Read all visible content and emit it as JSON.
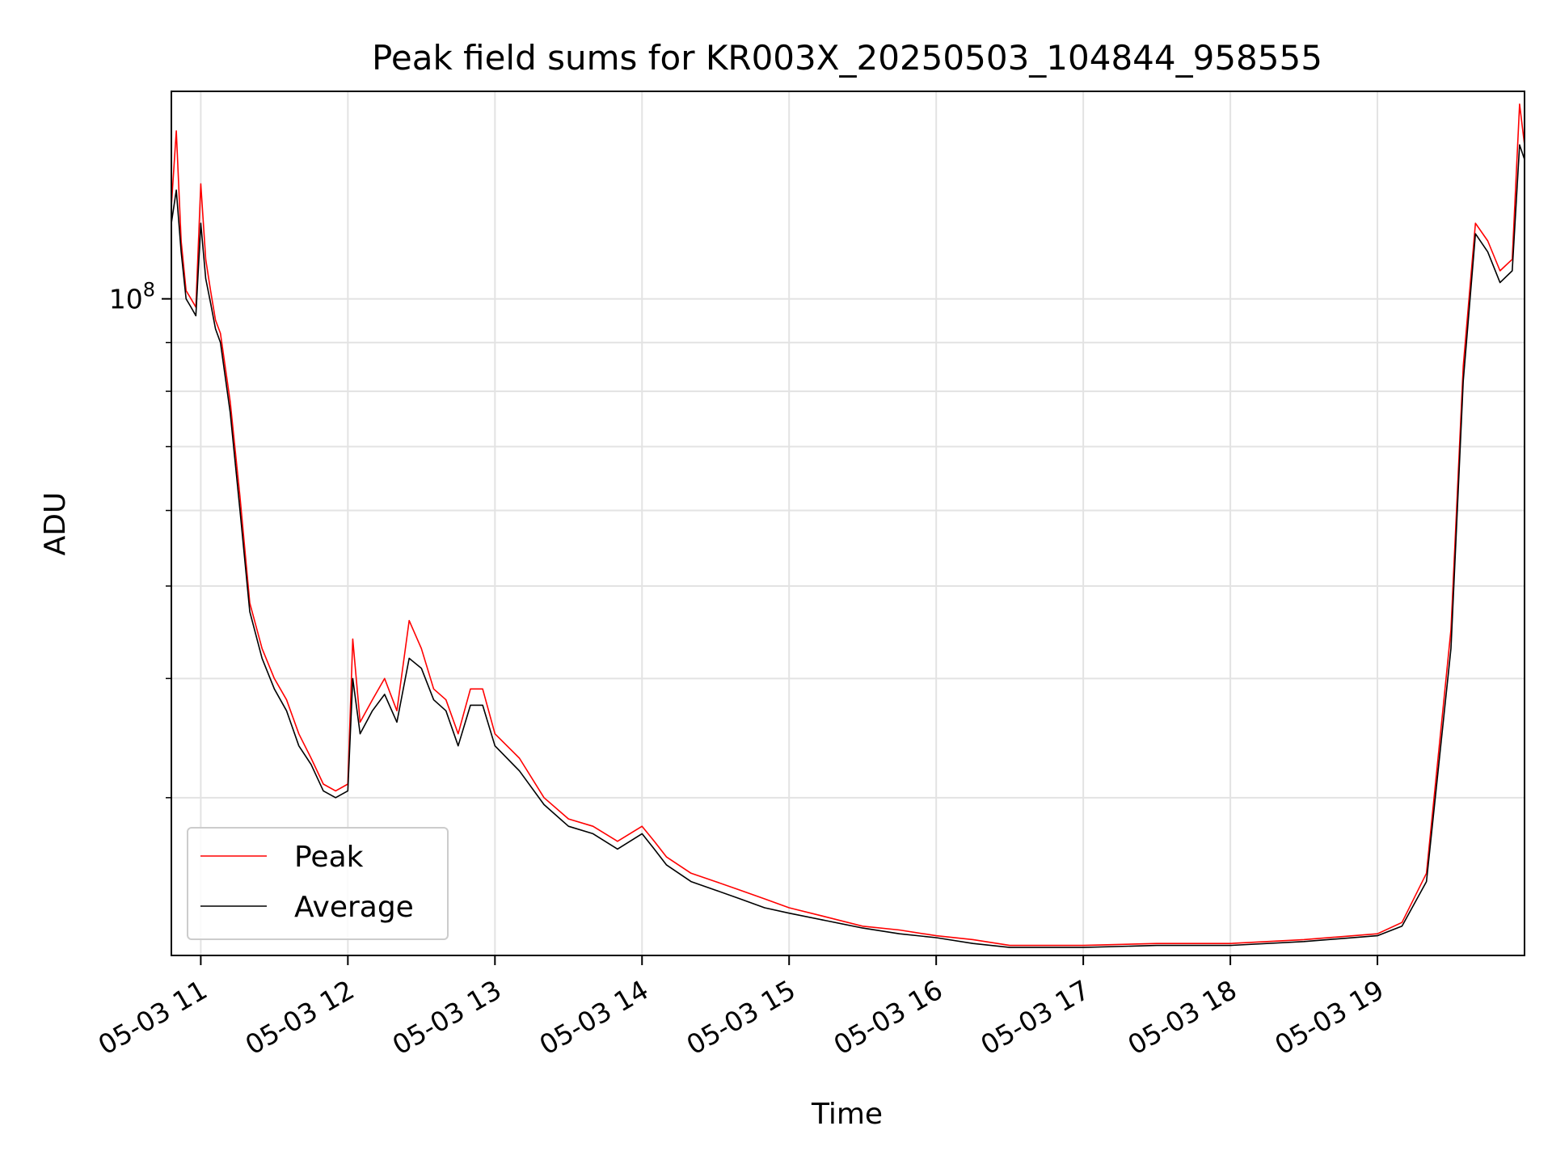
{
  "chart_data": {
    "type": "line",
    "title": "Peak field sums for KR003X_20250503_104844_958555",
    "xlabel": "Time",
    "ylabel": "ADU",
    "y_scale": "log",
    "ylim": [
      20500000.0,
      165000000.0
    ],
    "xlim": [
      "2025-05-03 10:48",
      "2025-05-03 20:00"
    ],
    "grid": true,
    "legend_position": "lower-left",
    "x_tick_labels": [
      "05-03 11",
      "05-03 12",
      "05-03 13",
      "05-03 14",
      "05-03 15",
      "05-03 16",
      "05-03 17",
      "05-03 18",
      "05-03 19"
    ],
    "x_ticks": [
      "2025-05-03 11:00",
      "2025-05-03 12:00",
      "2025-05-03 13:00",
      "2025-05-03 14:00",
      "2025-05-03 15:00",
      "2025-05-03 16:00",
      "2025-05-03 17:00",
      "2025-05-03 18:00",
      "2025-05-03 19:00"
    ],
    "y_major_tick_label": "10^8",
    "y_major_tick_value": 100000000,
    "y_minor_ticks": [
      30000000,
      40000000,
      50000000,
      60000000,
      70000000,
      80000000,
      90000000
    ],
    "series": [
      {
        "name": "Peak",
        "color": "#ff0000",
        "x": [
          "2025-05-03 10:48",
          "2025-05-03 10:50",
          "2025-05-03 10:52",
          "2025-05-03 10:54",
          "2025-05-03 10:56",
          "2025-05-03 10:58",
          "2025-05-03 11:00",
          "2025-05-03 11:02",
          "2025-05-03 11:04",
          "2025-05-03 11:06",
          "2025-05-03 11:08",
          "2025-05-03 11:12",
          "2025-05-03 11:16",
          "2025-05-03 11:20",
          "2025-05-03 11:25",
          "2025-05-03 11:30",
          "2025-05-03 11:35",
          "2025-05-03 11:40",
          "2025-05-03 11:45",
          "2025-05-03 11:50",
          "2025-05-03 11:55",
          "2025-05-03 12:00",
          "2025-05-03 12:02",
          "2025-05-03 12:05",
          "2025-05-03 12:10",
          "2025-05-03 12:15",
          "2025-05-03 12:20",
          "2025-05-03 12:25",
          "2025-05-03 12:30",
          "2025-05-03 12:35",
          "2025-05-03 12:40",
          "2025-05-03 12:45",
          "2025-05-03 12:50",
          "2025-05-03 12:55",
          "2025-05-03 13:00",
          "2025-05-03 13:10",
          "2025-05-03 13:20",
          "2025-05-03 13:30",
          "2025-05-03 13:40",
          "2025-05-03 13:50",
          "2025-05-03 14:00",
          "2025-05-03 14:05",
          "2025-05-03 14:10",
          "2025-05-03 14:20",
          "2025-05-03 14:30",
          "2025-05-03 14:40",
          "2025-05-03 14:50",
          "2025-05-03 15:00",
          "2025-05-03 15:15",
          "2025-05-03 15:30",
          "2025-05-03 15:45",
          "2025-05-03 16:00",
          "2025-05-03 16:15",
          "2025-05-03 16:30",
          "2025-05-03 16:45",
          "2025-05-03 17:00",
          "2025-05-03 17:30",
          "2025-05-03 18:00",
          "2025-05-03 18:30",
          "2025-05-03 19:00",
          "2025-05-03 19:10",
          "2025-05-03 19:20",
          "2025-05-03 19:30",
          "2025-05-03 19:35",
          "2025-05-03 19:40",
          "2025-05-03 19:45",
          "2025-05-03 19:50",
          "2025-05-03 19:55",
          "2025-05-03 19:58",
          "2025-05-03 20:00"
        ],
        "values": [
          125000000,
          150000000,
          115000000,
          102000000,
          100000000,
          98000000,
          132000000,
          110000000,
          102000000,
          95000000,
          92000000,
          78000000,
          62000000,
          48000000,
          43000000,
          40000000,
          38000000,
          35000000,
          33000000,
          31000000,
          30500000,
          31000000,
          44000000,
          36000000,
          38000000,
          40000000,
          37000000,
          46000000,
          43000000,
          39000000,
          38000000,
          35000000,
          39000000,
          39000000,
          35000000,
          33000000,
          30000000,
          28500000,
          28000000,
          27000000,
          28000000,
          27000000,
          26000000,
          25000000,
          24500000,
          24000000,
          23500000,
          23000000,
          22500000,
          22000000,
          21800000,
          21500000,
          21300000,
          21000000,
          21000000,
          21000000,
          21100000,
          21100000,
          21300000,
          21600000,
          22200000,
          25000000,
          45000000,
          85000000,
          120000000,
          115000000,
          107000000,
          110000000,
          160000000,
          145000000
        ]
      },
      {
        "name": "Average",
        "color": "#000000",
        "x": [
          "2025-05-03 10:48",
          "2025-05-03 10:50",
          "2025-05-03 10:52",
          "2025-05-03 10:54",
          "2025-05-03 10:56",
          "2025-05-03 10:58",
          "2025-05-03 11:00",
          "2025-05-03 11:02",
          "2025-05-03 11:04",
          "2025-05-03 11:06",
          "2025-05-03 11:08",
          "2025-05-03 11:12",
          "2025-05-03 11:16",
          "2025-05-03 11:20",
          "2025-05-03 11:25",
          "2025-05-03 11:30",
          "2025-05-03 11:35",
          "2025-05-03 11:40",
          "2025-05-03 11:45",
          "2025-05-03 11:50",
          "2025-05-03 11:55",
          "2025-05-03 12:00",
          "2025-05-03 12:02",
          "2025-05-03 12:05",
          "2025-05-03 12:10",
          "2025-05-03 12:15",
          "2025-05-03 12:20",
          "2025-05-03 12:25",
          "2025-05-03 12:30",
          "2025-05-03 12:35",
          "2025-05-03 12:40",
          "2025-05-03 12:45",
          "2025-05-03 12:50",
          "2025-05-03 12:55",
          "2025-05-03 13:00",
          "2025-05-03 13:10",
          "2025-05-03 13:20",
          "2025-05-03 13:30",
          "2025-05-03 13:40",
          "2025-05-03 13:50",
          "2025-05-03 14:00",
          "2025-05-03 14:05",
          "2025-05-03 14:10",
          "2025-05-03 14:20",
          "2025-05-03 14:30",
          "2025-05-03 14:40",
          "2025-05-03 14:50",
          "2025-05-03 15:00",
          "2025-05-03 15:15",
          "2025-05-03 15:30",
          "2025-05-03 15:45",
          "2025-05-03 16:00",
          "2025-05-03 16:15",
          "2025-05-03 16:30",
          "2025-05-03 16:45",
          "2025-05-03 17:00",
          "2025-05-03 17:30",
          "2025-05-03 18:00",
          "2025-05-03 18:30",
          "2025-05-03 19:00",
          "2025-05-03 19:10",
          "2025-05-03 19:20",
          "2025-05-03 19:30",
          "2025-05-03 19:35",
          "2025-05-03 19:40",
          "2025-05-03 19:45",
          "2025-05-03 19:50",
          "2025-05-03 19:55",
          "2025-05-03 19:58",
          "2025-05-03 20:00"
        ],
        "values": [
          120000000,
          130000000,
          112000000,
          100000000,
          98000000,
          96000000,
          120000000,
          105000000,
          99000000,
          93000000,
          90000000,
          76000000,
          60000000,
          47000000,
          42000000,
          39000000,
          37000000,
          34000000,
          32500000,
          30500000,
          30000000,
          30500000,
          40000000,
          35000000,
          37000000,
          38500000,
          36000000,
          42000000,
          41000000,
          38000000,
          37000000,
          34000000,
          37500000,
          37500000,
          34000000,
          32000000,
          29500000,
          28000000,
          27500000,
          26500000,
          27500000,
          26500000,
          25500000,
          24500000,
          24000000,
          23500000,
          23000000,
          22700000,
          22300000,
          21900000,
          21600000,
          21400000,
          21100000,
          20900000,
          20900000,
          20900000,
          21000000,
          21000000,
          21200000,
          21500000,
          22000000,
          24500000,
          43000000,
          82000000,
          117000000,
          112000000,
          104000000,
          107000000,
          145000000,
          140000000
        ]
      }
    ]
  }
}
